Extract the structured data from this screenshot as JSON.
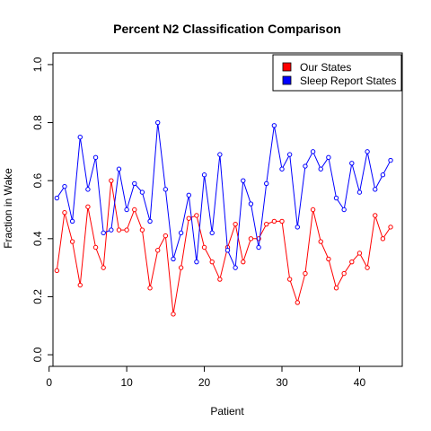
{
  "chart_data": {
    "type": "line",
    "title": "Percent N2 Classification Comparison",
    "xlabel": "Patient",
    "ylabel": "Fraction in Wake",
    "xlim": [
      0.5,
      45.5
    ],
    "ylim": [
      -0.04,
      1.04
    ],
    "x_ticks": [
      0,
      10,
      20,
      30,
      40
    ],
    "y_ticks": [
      0.0,
      0.2,
      0.4,
      0.6,
      0.8,
      1.0
    ],
    "x_tick_labels": [
      "0",
      "10",
      "20",
      "30",
      "40"
    ],
    "y_tick_labels": [
      "0.0",
      "0.2",
      "0.4",
      "0.6",
      "0.8",
      "1.0"
    ],
    "legend_position": "top-right",
    "grid": false,
    "x": [
      1,
      2,
      3,
      4,
      5,
      6,
      7,
      8,
      9,
      10,
      11,
      12,
      13,
      14,
      15,
      16,
      17,
      18,
      19,
      20,
      21,
      22,
      23,
      24,
      25,
      26,
      27,
      28,
      29,
      30,
      31,
      32,
      33,
      34,
      35,
      36,
      37,
      38,
      39,
      40,
      41,
      42,
      43,
      44
    ],
    "series": [
      {
        "name": "Our States",
        "color": "#ff0000",
        "values": [
          0.29,
          0.49,
          0.39,
          0.24,
          0.51,
          0.37,
          0.3,
          0.6,
          0.43,
          0.43,
          0.5,
          0.43,
          0.23,
          0.36,
          0.41,
          0.14,
          0.3,
          0.47,
          0.48,
          0.37,
          0.32,
          0.26,
          0.37,
          0.45,
          0.32,
          0.4,
          0.4,
          0.45,
          0.46,
          0.46,
          0.26,
          0.18,
          0.28,
          0.5,
          0.39,
          0.33,
          0.23,
          0.28,
          0.32,
          0.35,
          0.3,
          0.48,
          0.4,
          0.44
        ]
      },
      {
        "name": "Sleep Report States",
        "color": "#0000ff",
        "values": [
          0.54,
          0.58,
          0.46,
          0.75,
          0.57,
          0.68,
          0.42,
          0.43,
          0.64,
          0.5,
          0.59,
          0.56,
          0.46,
          0.8,
          0.57,
          0.33,
          0.42,
          0.55,
          0.32,
          0.62,
          0.42,
          0.69,
          0.36,
          0.3,
          0.6,
          0.52,
          0.37,
          0.59,
          0.79,
          0.64,
          0.69,
          0.44,
          0.65,
          0.7,
          0.64,
          0.68,
          0.54,
          0.5,
          0.66,
          0.56,
          0.7,
          0.57,
          0.62,
          0.67
        ]
      }
    ]
  }
}
